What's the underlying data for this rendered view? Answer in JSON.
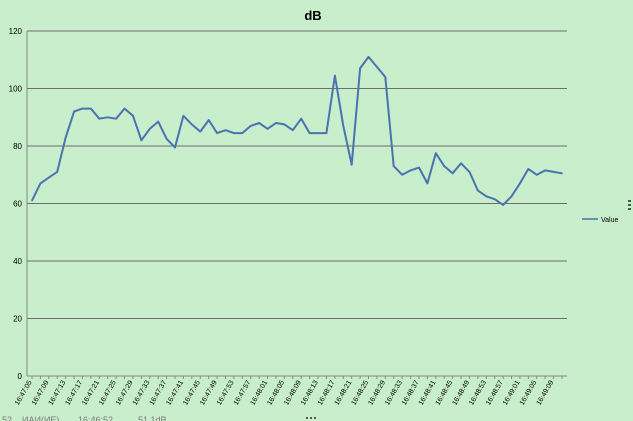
{
  "colors": {
    "background": "#c8eecb",
    "series": "#4a73b0",
    "gridline": "#6e6e6e",
    "axis": "#888888",
    "text": "#000000"
  },
  "chart_data": {
    "type": "line",
    "title": "dB",
    "xlabel": "",
    "ylabel": "",
    "ylim": [
      0,
      120
    ],
    "yticks": [
      0,
      20,
      40,
      60,
      80,
      100,
      120
    ],
    "grid": true,
    "legend_position": "right",
    "x": [
      "16:47:05",
      "16:47:07",
      "16:47:09",
      "16:47:11",
      "16:47:13",
      "16:47:15",
      "16:47:17",
      "16:47:19",
      "16:47:21",
      "16:47:23",
      "16:47:25",
      "16:47:27",
      "16:47:29",
      "16:47:31",
      "16:47:33",
      "16:47:35",
      "16:47:37",
      "16:47:39",
      "16:47:41",
      "16:47:43",
      "16:47:45",
      "16:47:47",
      "16:47:49",
      "16:47:51",
      "16:47:53",
      "16:47:55",
      "16:47:57",
      "16:47:59",
      "16:48:01",
      "16:48:03",
      "16:48:05",
      "16:48:07",
      "16:48:09",
      "16:48:11",
      "16:48:13",
      "16:48:15",
      "16:48:17",
      "16:48:19",
      "16:48:21",
      "16:48:23",
      "16:48:25",
      "16:48:27",
      "16:48:29",
      "16:48:31",
      "16:48:33",
      "16:48:35",
      "16:48:37",
      "16:48:39",
      "16:48:41",
      "16:48:43",
      "16:48:45",
      "16:48:47",
      "16:48:49",
      "16:48:51",
      "16:48:53",
      "16:48:55",
      "16:48:57",
      "16:48:59",
      "16:49:01",
      "16:49:03",
      "16:49:05",
      "16:49:07",
      "16:49:09",
      "16:49:11"
    ],
    "x_tick_labels": [
      "16:47:05",
      "16:47:09",
      "16:47:13",
      "16:47:17",
      "16:47:21",
      "16:47:25",
      "16:47:29",
      "16:47:33",
      "16:47:37",
      "16:47:41",
      "16:47:45",
      "16:47:49",
      "16:47:53",
      "16:47:57",
      "16:48:01",
      "16:48:05",
      "16:48:09",
      "16:48:13",
      "16:48:17",
      "16:48:21",
      "16:48:25",
      "16:48:29",
      "16:48:33",
      "16:48:37",
      "16:48:41",
      "16:48:45",
      "16:48:49",
      "16:48:53",
      "16:48:57",
      "16:49:01",
      "16:49:05",
      "16:49:09"
    ],
    "series": [
      {
        "name": "Value",
        "values": [
          61,
          67,
          69,
          71,
          83,
          92,
          93,
          93,
          89.5,
          90,
          89.5,
          93,
          90.5,
          82,
          86,
          88.5,
          82.5,
          79.5,
          90.5,
          87.5,
          85,
          89,
          84.5,
          85.5,
          84.5,
          84.5,
          87,
          88,
          86,
          88,
          87.5,
          85.5,
          89.5,
          84.5,
          84.5,
          84.5,
          104.5,
          87,
          73.5,
          107,
          111,
          107.5,
          104,
          73,
          70,
          71.5,
          72.5,
          67,
          77.5,
          73,
          70.5,
          74,
          71,
          64.5,
          62.5,
          61.5,
          59.5,
          62.5,
          67,
          72,
          70,
          71.5,
          71,
          70.5
        ]
      }
    ]
  },
  "footer_fragments": [
    "52",
    "ИАИ(ИЕ)",
    "16:46:52",
    "51.1dB"
  ]
}
